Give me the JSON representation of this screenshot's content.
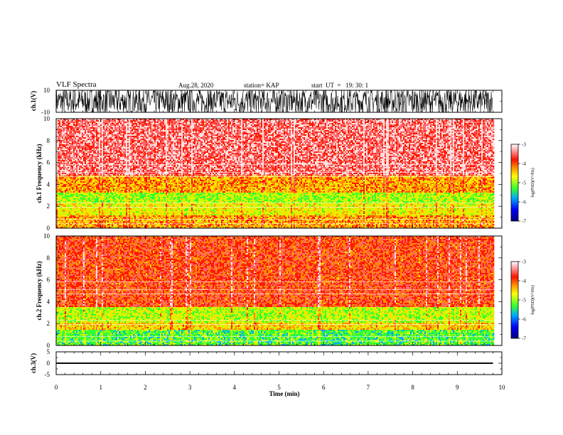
{
  "header": {
    "title": "VLF Spectra",
    "date": "Aug.28, 2020",
    "station": "station= KAP",
    "start": "start  UT  =   19: 30: 1"
  },
  "chart_data": [
    {
      "type": "line",
      "panel": "ch1-waveform",
      "ylabel": "ch.1(V)",
      "ylim": [
        -10,
        10
      ],
      "yticks": [
        "10",
        "-10"
      ],
      "xlim": [
        0,
        10
      ],
      "description_values": "dense noise waveform saturating between about -10 and 10 V from 0 to 9.8 min"
    },
    {
      "type": "heatmap",
      "panel": "ch1-spectrogram",
      "ylabel": "ch.1  Frequency  (kHz)",
      "ylim": [
        0,
        10
      ],
      "yticks": [
        "0",
        "2",
        "4",
        "6",
        "8",
        "10"
      ],
      "xlim": [
        0,
        10
      ],
      "data_end_min": 9.8,
      "colorbar": {
        "label": "log(PSD)(V²/Hz)",
        "range": [
          -7,
          -3
        ],
        "ticks": [
          "-3",
          "-4",
          "-5",
          "-6",
          "-7"
        ]
      },
      "bands_khz": [
        {
          "from": 0,
          "to": 1.2,
          "level": -4.2
        },
        {
          "from": 1.2,
          "to": 2.4,
          "level": -4.6
        },
        {
          "from": 2.4,
          "to": 3.3,
          "level": -4.9
        },
        {
          "from": 3.3,
          "to": 4.9,
          "level": -4.2
        },
        {
          "from": 4.9,
          "to": 10,
          "level": -3.4
        }
      ]
    },
    {
      "type": "heatmap",
      "panel": "ch2-spectrogram",
      "ylabel": "ch.2  Frequency  (kHz)",
      "ylim": [
        0,
        10
      ],
      "yticks": [
        "0",
        "2",
        "4",
        "6",
        "8",
        "10"
      ],
      "xlim": [
        0,
        10
      ],
      "data_end_min": 9.8,
      "colorbar": {
        "label": "log(PSD)(V²/Hz)",
        "range": [
          -7,
          -3
        ],
        "ticks": [
          "-3",
          "-4",
          "-5",
          "-6",
          "-7"
        ]
      },
      "bands_khz": [
        {
          "from": 0,
          "to": 1.5,
          "level": -5.2
        },
        {
          "from": 1.5,
          "to": 2.2,
          "level": -4.4
        },
        {
          "from": 2.2,
          "to": 3.6,
          "level": -4.8
        },
        {
          "from": 3.6,
          "to": 10,
          "level": -3.8
        }
      ]
    },
    {
      "type": "line",
      "panel": "ch3-waveform",
      "ylabel": "ch.3(V)",
      "ylim": [
        -5,
        5
      ],
      "yticks": [
        "5",
        "0",
        "-5"
      ],
      "xlim": [
        0,
        10
      ],
      "xlabel": "Time  (min)",
      "xticks": [
        "0",
        "1",
        "2",
        "3",
        "4",
        "5",
        "6",
        "7",
        "8",
        "9",
        "10"
      ],
      "band": [
        -0.3,
        0.3
      ]
    }
  ],
  "colors": {
    "c-7": "#00007f",
    "c-6": "#0066ff",
    "c-5": "#33ff33",
    "c-45": "#ffff00",
    "c-4": "#ff3300",
    "c-3": "#ffffff"
  }
}
